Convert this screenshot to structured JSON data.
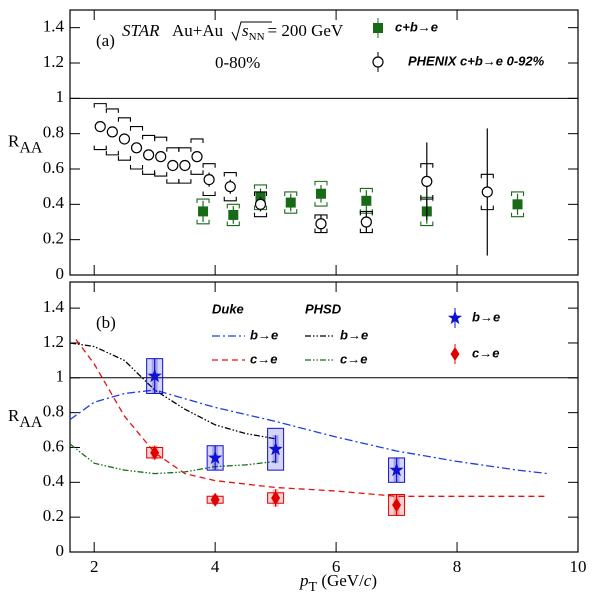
{
  "chart_data": [
    {
      "type": "errorbar",
      "panel_label": "(a)",
      "experiment": "STAR",
      "system": "Au+Au",
      "sqrt_label": "s",
      "sqrt_sub": "NN",
      "energy": "= 200 GeV",
      "centrality": "0-80%",
      "y_label": "R",
      "y_label_sub": "AA",
      "xlim": [
        1.6,
        10
      ],
      "xticks": [
        2,
        4,
        6,
        8,
        10
      ],
      "ylim": [
        0,
        1.5
      ],
      "yticks": [
        0,
        0.2,
        0.4,
        0.6,
        0.8,
        1,
        1.2,
        1.4
      ],
      "reference_line": 1,
      "series": [
        {
          "name": "c+b→e",
          "color": "#176b17",
          "marker": "square-filled",
          "sys_style": "bracket",
          "x": [
            3.8,
            4.3,
            4.75,
            5.25,
            5.75,
            6.5,
            7.5,
            9
          ],
          "values": [
            0.36,
            0.34,
            0.44,
            0.41,
            0.46,
            0.42,
            0.36,
            0.4
          ],
          "errors": [
            0.06,
            0.05,
            0.05,
            0.05,
            0.05,
            0.06,
            0.07,
            0.06
          ],
          "sys_errors": [
            0.07,
            0.06,
            0.07,
            0.06,
            0.07,
            0.07,
            0.08,
            0.07
          ]
        },
        {
          "name": "PHENIX  c+b→e 0-92%",
          "color": "#000000",
          "marker": "circle-open",
          "sys_style": "bracket",
          "x": [
            2.1,
            2.3,
            2.5,
            2.7,
            2.9,
            3.1,
            3.3,
            3.5,
            3.7,
            3.9,
            4.25,
            4.75,
            5.75,
            6.5,
            7.5,
            8.5
          ],
          "values": [
            0.84,
            0.81,
            0.77,
            0.72,
            0.68,
            0.67,
            0.62,
            0.62,
            0.67,
            0.54,
            0.5,
            0.4,
            0.29,
            0.3,
            0.53,
            0.47
          ],
          "errors": [
            0.01,
            0.01,
            0.01,
            0.01,
            0.01,
            0.01,
            0.02,
            0.02,
            0.03,
            0.04,
            0.04,
            0.04,
            0.05,
            0.06,
            0.22,
            0.36
          ],
          "sys_errors": [
            0.13,
            0.13,
            0.12,
            0.12,
            0.11,
            0.11,
            0.1,
            0.1,
            0.1,
            0.09,
            0.08,
            0.07,
            0.05,
            0.06,
            0.1,
            0.1
          ]
        }
      ]
    },
    {
      "type": "errorbar",
      "panel_label": "(b)",
      "y_label": "R",
      "y_label_sub": "AA",
      "x_label": "p",
      "x_label_sub": "T",
      "x_label_unit": " (GeV/",
      "x_label_c": "c",
      "x_label_end": ")",
      "xlim": [
        1.6,
        10
      ],
      "xticks": [
        2,
        4,
        6,
        8,
        10
      ],
      "ylim": [
        0,
        1.55
      ],
      "yticks": [
        0,
        0.2,
        0.4,
        0.6,
        0.8,
        1,
        1.2,
        1.4
      ],
      "reference_line": 1,
      "groups": [
        "Duke",
        "PHSD"
      ],
      "series": [
        {
          "name": "b→e",
          "group": "Duke",
          "color": "#1f3fe0",
          "marker": "curve",
          "dash": "8 3 2 3",
          "x": [
            1.6,
            2,
            2.5,
            3,
            3.5,
            4,
            5,
            6,
            7,
            8,
            9,
            9.5
          ],
          "values": [
            0.76,
            0.86,
            0.91,
            0.93,
            0.88,
            0.83,
            0.75,
            0.66,
            0.58,
            0.52,
            0.47,
            0.45
          ]
        },
        {
          "name": "c→e",
          "group": "Duke",
          "color": "#e81010",
          "marker": "curve",
          "dash": "6 4",
          "x": [
            1.7,
            2,
            2.5,
            3,
            3.5,
            4,
            5,
            6,
            7,
            8,
            9,
            9.5
          ],
          "values": [
            1.22,
            1.08,
            0.78,
            0.57,
            0.45,
            0.41,
            0.37,
            0.35,
            0.32,
            0.32,
            0.32,
            0.32
          ]
        },
        {
          "name": "b→e",
          "group": "PHSD",
          "color": "#000000",
          "marker": "curve",
          "dash": "6 2 1.5 2 1.5 2",
          "x": [
            1.6,
            2,
            2.5,
            3,
            3.5,
            4,
            4.5,
            5
          ],
          "values": [
            1.2,
            1.18,
            1.1,
            0.93,
            0.82,
            0.73,
            0.68,
            0.65
          ]
        },
        {
          "name": "c→e",
          "group": "PHSD",
          "color": "#147014",
          "marker": "curve",
          "dash": "6 2 1.5 2 1.5 2",
          "x": [
            1.6,
            2,
            2.5,
            3,
            3.5,
            4,
            4.5,
            5
          ],
          "values": [
            0.62,
            0.51,
            0.47,
            0.45,
            0.46,
            0.49,
            0.5,
            0.52
          ]
        },
        {
          "name": "b→e",
          "color": "#1010d0",
          "marker": "star",
          "sys_style": "box",
          "x": [
            3,
            4,
            5,
            7
          ],
          "values": [
            1.01,
            0.54,
            0.59,
            0.47
          ],
          "errors": [
            0.1,
            0.07,
            0.08,
            0.07
          ],
          "sys_errors": [
            0.1,
            0.07,
            0.12,
            0.07
          ]
        },
        {
          "name": "c→e",
          "color": "#e00000",
          "marker": "diamond",
          "sys_style": "box",
          "x": [
            3,
            4,
            5,
            7
          ],
          "values": [
            0.57,
            0.3,
            0.31,
            0.27
          ],
          "errors": [
            0.04,
            0.03,
            0.05,
            0.06
          ],
          "sys_errors": [
            0.03,
            0.02,
            0.03,
            0.06
          ]
        }
      ]
    }
  ]
}
